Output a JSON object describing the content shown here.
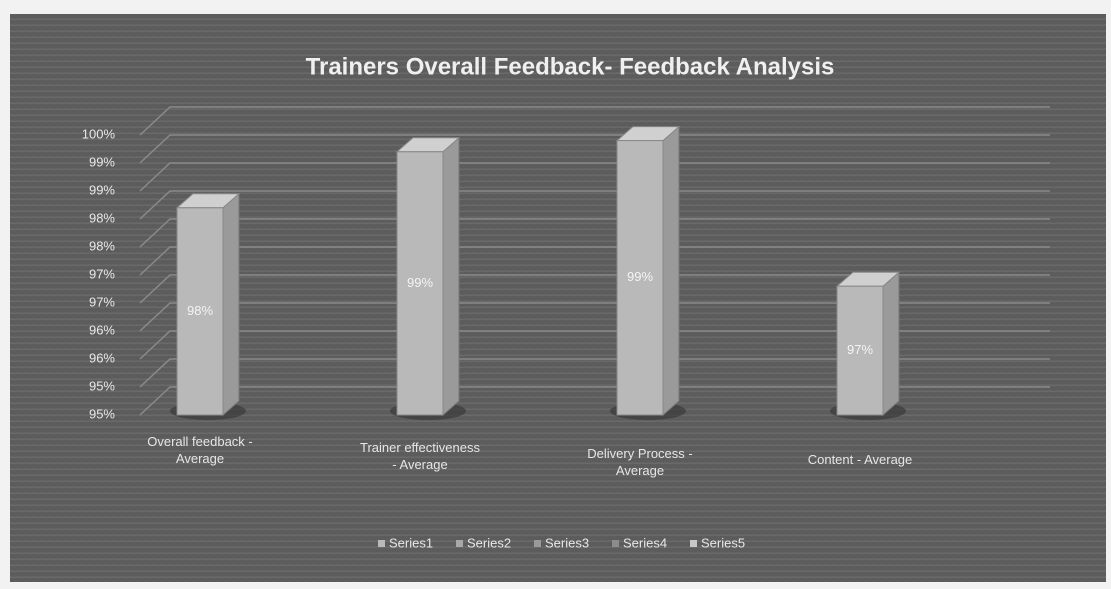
{
  "chart_data": {
    "type": "bar3d",
    "title": "Trainers Overall Feedback- Feedback Analysis",
    "categories": [
      "Overall feedback - Average",
      "Trainer effectiveness - Average",
      "Delivery Process - Average",
      "Content - Average"
    ],
    "values": [
      98.2,
      99.2,
      99.4,
      96.8
    ],
    "value_labels": [
      "98%",
      "99%",
      "99%",
      "97%"
    ],
    "color": "#b9b9b9",
    "ylim": [
      94.5,
      99.5
    ],
    "yticks": [
      {
        "value": 94.5,
        "label": "95%"
      },
      {
        "value": 95,
        "label": "95%"
      },
      {
        "value": 95.5,
        "label": "96%"
      },
      {
        "value": 96,
        "label": "96%"
      },
      {
        "value": 96.5,
        "label": "97%"
      },
      {
        "value": 97,
        "label": "97%"
      },
      {
        "value": 97.5,
        "label": "98%"
      },
      {
        "value": 98,
        "label": "98%"
      },
      {
        "value": 98.5,
        "label": "99%"
      },
      {
        "value": 99,
        "label": "99%"
      },
      {
        "value": 99.5,
        "label": "100%"
      }
    ],
    "grid": true,
    "legend": [
      {
        "name": "Series1",
        "color": "#b9b9b9"
      },
      {
        "name": "Series2",
        "color": "#a8a8a8"
      },
      {
        "name": "Series3",
        "color": "#9a9a9a"
      },
      {
        "name": "Series4",
        "color": "#8c8c8c"
      },
      {
        "name": "Series5",
        "color": "#c8c8c8"
      }
    ]
  }
}
